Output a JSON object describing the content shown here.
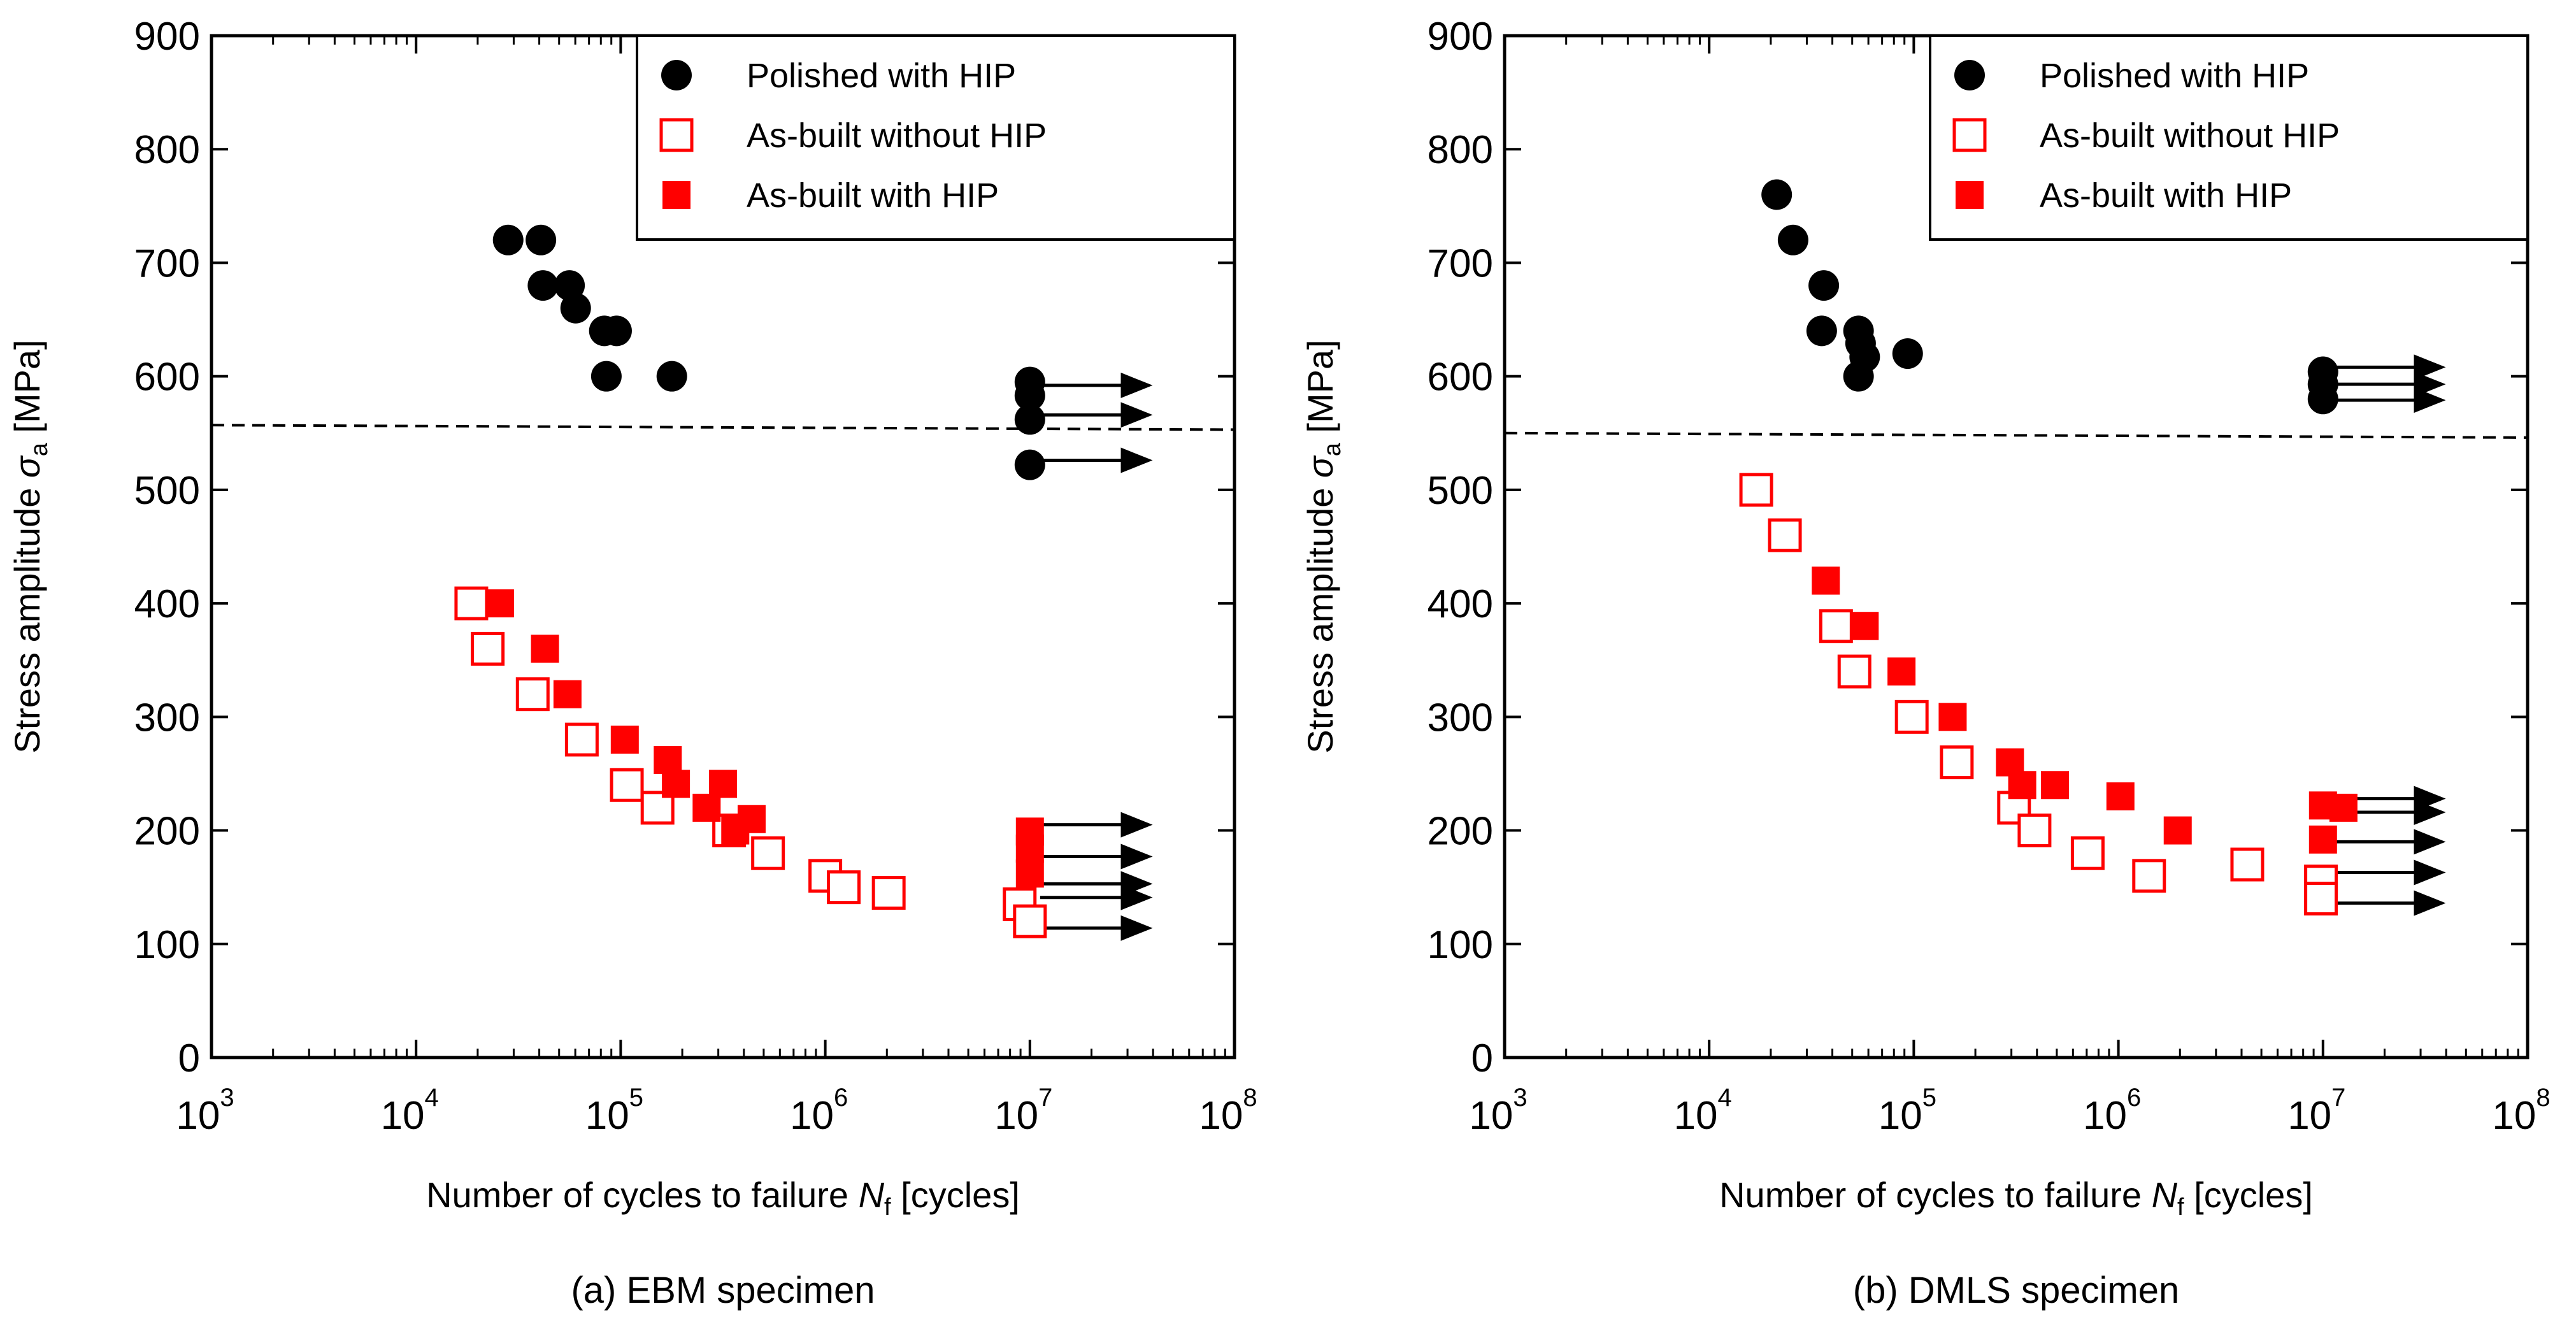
{
  "chart_data": [
    {
      "type": "scatter",
      "panel": "left",
      "caption": "(a) EBM specimen",
      "xlabel": "Number of cycles to failure",
      "xlabel_symbol": "N",
      "xlabel_sub": "f",
      "xlabel_unit": "[cycles]",
      "ylabel": "Stress amplitude",
      "ylabel_symbol": "σ",
      "ylabel_sub": "a",
      "ylabel_unit": "[MPa]",
      "xscale": "log",
      "xlim_log10": [
        3,
        8
      ],
      "ylim": [
        0,
        900
      ],
      "x_ticks": [
        "10",
        "10",
        "10",
        "10",
        "10",
        "10"
      ],
      "x_tick_exps": [
        "3",
        "4",
        "5",
        "6",
        "7",
        "8"
      ],
      "y_ticks": [
        "0",
        "100",
        "200",
        "300",
        "400",
        "500",
        "600",
        "700",
        "800",
        "900"
      ],
      "legend_position": "top-right",
      "fatigue_limit_line": {
        "style": "dashed",
        "y_start": 557,
        "y_end": 553
      },
      "series": [
        {
          "name": "Polished with HIP",
          "marker": "filled-circle",
          "color": "#000000",
          "log10_x": [
            4.45,
            4.61,
            4.62,
            4.75,
            4.78,
            4.92,
            4.98,
            4.93,
            5.25,
            7.0,
            7.0,
            7.0,
            7.0
          ],
          "y": [
            720,
            720,
            680,
            680,
            660,
            640,
            640,
            600,
            600,
            595,
            583,
            562,
            522
          ]
        },
        {
          "name": "As-built without HIP",
          "marker": "open-square",
          "color": "#ff0000",
          "log10_x": [
            4.27,
            4.35,
            4.57,
            4.81,
            5.03,
            5.18,
            5.53,
            5.72,
            6.0,
            6.09,
            6.31,
            6.95,
            7.0
          ],
          "y": [
            400,
            360,
            320,
            280,
            240,
            220,
            200,
            180,
            160,
            150,
            145,
            135,
            120
          ]
        },
        {
          "name": "As-built with HIP",
          "marker": "filled-square",
          "color": "#ff0000",
          "log10_x": [
            4.41,
            4.63,
            4.74,
            5.02,
            5.23,
            5.27,
            5.5,
            5.42,
            5.64,
            5.56,
            7.0,
            7.0,
            7.0
          ],
          "y": [
            400,
            360,
            320,
            280,
            262,
            241,
            241,
            220,
            210,
            200,
            199,
            184,
            162
          ]
        }
      ],
      "runout_arrows_y": [
        592,
        566,
        526,
        205,
        177,
        153,
        141,
        114
      ],
      "runout_arrow_log10_x": [
        7.05,
        7.6
      ]
    },
    {
      "type": "scatter",
      "panel": "right",
      "caption": "(b) DMLS specimen",
      "xlabel": "Number of cycles to failure",
      "xlabel_symbol": "N",
      "xlabel_sub": "f",
      "xlabel_unit": "[cycles]",
      "ylabel": "Stress amplitude",
      "ylabel_symbol": "σ",
      "ylabel_sub": "a",
      "ylabel_unit": "[MPa]",
      "xscale": "log",
      "xlim_log10": [
        3,
        8
      ],
      "ylim": [
        0,
        900
      ],
      "x_ticks": [
        "10",
        "10",
        "10",
        "10",
        "10",
        "10"
      ],
      "x_tick_exps": [
        "3",
        "4",
        "5",
        "6",
        "7",
        "8"
      ],
      "y_ticks": [
        "0",
        "100",
        "200",
        "300",
        "400",
        "500",
        "600",
        "700",
        "800",
        "900"
      ],
      "legend_position": "top-right",
      "fatigue_limit_line": {
        "style": "dashed",
        "y_start": 550,
        "y_end": 546
      },
      "series": [
        {
          "name": "Polished with HIP",
          "marker": "filled-circle",
          "color": "#000000",
          "log10_x": [
            4.33,
            4.41,
            4.56,
            4.55,
            4.73,
            4.74,
            4.76,
            4.73,
            4.97,
            7.0,
            7.0,
            7.0
          ],
          "y": [
            760,
            720,
            680,
            640,
            640,
            629,
            617,
            600,
            620,
            604,
            593,
            580
          ]
        },
        {
          "name": "As-built without HIP",
          "marker": "open-square",
          "color": "#ff0000",
          "log10_x": [
            4.23,
            4.37,
            4.62,
            4.71,
            4.99,
            5.21,
            5.49,
            5.59,
            5.85,
            6.15,
            6.63,
            6.99,
            6.99
          ],
          "y": [
            500,
            460,
            380,
            340,
            300,
            260,
            220,
            200,
            180,
            160,
            170,
            155,
            140
          ]
        },
        {
          "name": "As-built with HIP",
          "marker": "filled-square",
          "color": "#ff0000",
          "log10_x": [
            4.57,
            4.76,
            4.94,
            5.19,
            5.47,
            5.53,
            5.69,
            6.01,
            6.29,
            7.0,
            7.1,
            7.0
          ],
          "y": [
            420,
            380,
            340,
            300,
            260,
            240,
            240,
            230,
            200,
            222,
            220,
            192
          ]
        }
      ],
      "runout_arrows_y": [
        608,
        593,
        579,
        228,
        216,
        190,
        163,
        136
      ],
      "runout_arrow_log10_x": [
        7.05,
        7.6
      ]
    }
  ]
}
